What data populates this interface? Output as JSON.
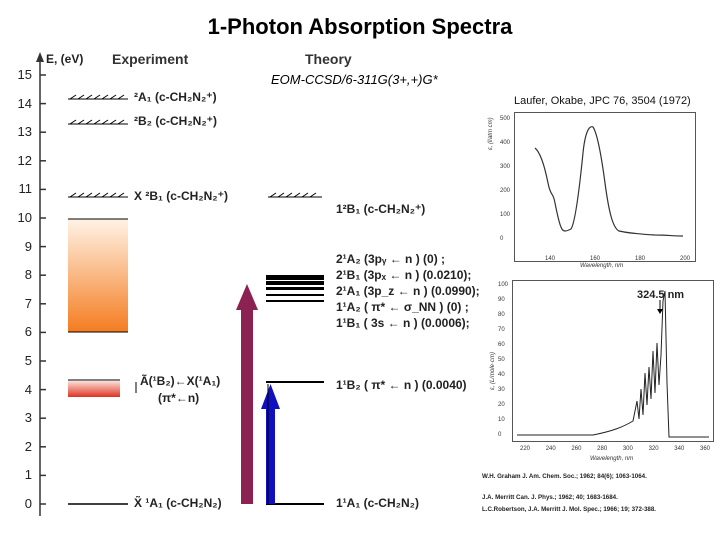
{
  "title": "1-Photon Absorption Spectra",
  "axis": {
    "label": "E, (eV)",
    "ticks": [
      "15",
      "14",
      "13",
      "12",
      "11",
      "10",
      "9",
      "8",
      "7",
      "6",
      "5",
      "4",
      "3",
      "2",
      "1",
      "0"
    ]
  },
  "columns": {
    "experiment": "Experiment",
    "theory": "Theory",
    "method": "EOM-CCSD/6-311G(3+,+)G*"
  },
  "experiment_states": [
    {
      "label": "²A₁ (c-CH₂N₂⁺)"
    },
    {
      "label": "²B₂ (c-CH₂N₂⁺)"
    },
    {
      "label": "X ²B₁ (c-CH₂N₂⁺)"
    },
    {
      "label": "Ã(¹B₂)←X(¹A₁)"
    },
    {
      "label": "(π*←n)"
    },
    {
      "label": "X̃ ¹A₁ (c-CH₂N₂)"
    }
  ],
  "theory_states": [
    {
      "label": "1²B₁ (c-CH₂N₂⁺)"
    },
    {
      "label": "2¹A₂ (3pᵧ ← n )  (0)       ;"
    },
    {
      "label": "2¹B₁ (3pₓ ← n )  (0.0210);"
    },
    {
      "label": "2¹A₁ (3p_z ← n )  (0.0990);"
    },
    {
      "label": "1¹A₂ ( π* ← σ_NN )  (0)     ;"
    },
    {
      "label": "1¹B₁ ( 3s  ← n )  (0.0006);"
    },
    {
      "label": "1¹B₂ ( π* ← n )   (0.0040)"
    },
    {
      "label": "1¹A₁ (c-CH₂N₂)"
    }
  ],
  "reference_top": "Laufer, Okabe, JPC 76, 3504 (1972)",
  "plot_top": {
    "ylabel": "ε, (l/atm cm)",
    "xlabel": "Wavelength, nm",
    "yticks": [
      "500",
      "400",
      "300",
      "200",
      "100",
      "0"
    ],
    "xticks": [
      "140",
      "160",
      "180",
      "200"
    ]
  },
  "plot_bottom": {
    "peak_label": "324.5 nm",
    "ylabel": "ε, (L/mole·cm)",
    "xlabel": "Wavelength, nm",
    "yticks": [
      "100",
      "90",
      "80",
      "70",
      "60",
      "50",
      "40",
      "30",
      "20",
      "10",
      "0"
    ],
    "xticks": [
      "220",
      "240",
      "260",
      "280",
      "300",
      "320",
      "340",
      "360"
    ]
  },
  "credits": [
    "W.H. Graham J. Am. Chem. Soc.; 1962; 84(6); 1063-1064.",
    "J.A. Merritt Can. J. Phys.; 1962; 40; 1683-1684.",
    "L.C.Robertson, J.A. Merritt J. Mol. Spec.; 1966; 19; 372-388."
  ],
  "colors": {
    "orange_band": "#f47c20",
    "red_band": "#dd3322",
    "maroon_arrow": "#8b2252",
    "blue_arrow": "#1010c0"
  }
}
